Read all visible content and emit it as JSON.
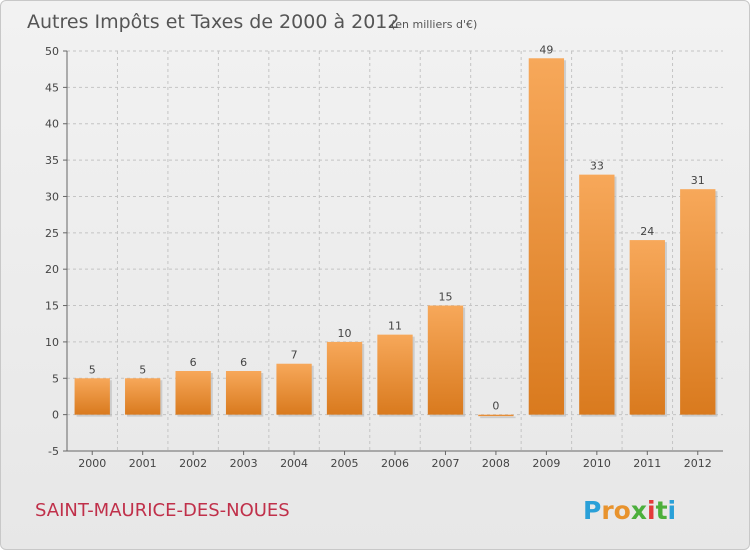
{
  "chart_data": {
    "type": "bar",
    "title": "Autres Impôts et Taxes de 2000 à 2012",
    "subtitle": "(en milliers d'€)",
    "categories": [
      "2000",
      "2001",
      "2002",
      "2003",
      "2004",
      "2005",
      "2006",
      "2007",
      "2008",
      "2009",
      "2010",
      "2011",
      "2012"
    ],
    "values": [
      5,
      5,
      6,
      6,
      7,
      10,
      11,
      15,
      0,
      49,
      33,
      24,
      31
    ],
    "ylim": [
      -5,
      50
    ],
    "yticks": [
      -5,
      0,
      5,
      10,
      15,
      20,
      25,
      30,
      35,
      40,
      45,
      50
    ],
    "grid": true,
    "bar_color": "#f0953a",
    "xlabel": "",
    "ylabel": ""
  },
  "footer": {
    "commune": "SAINT-MAURICE-DES-NOUES",
    "logo_letters": [
      "P",
      "r",
      "o",
      "x",
      "i",
      "t",
      "i"
    ],
    "logo_colors": [
      "#2aa0d8",
      "#e8932d",
      "#e8932d",
      "#4caf3c",
      "#e33a3a",
      "#4caf3c",
      "#2aa0d8"
    ]
  }
}
